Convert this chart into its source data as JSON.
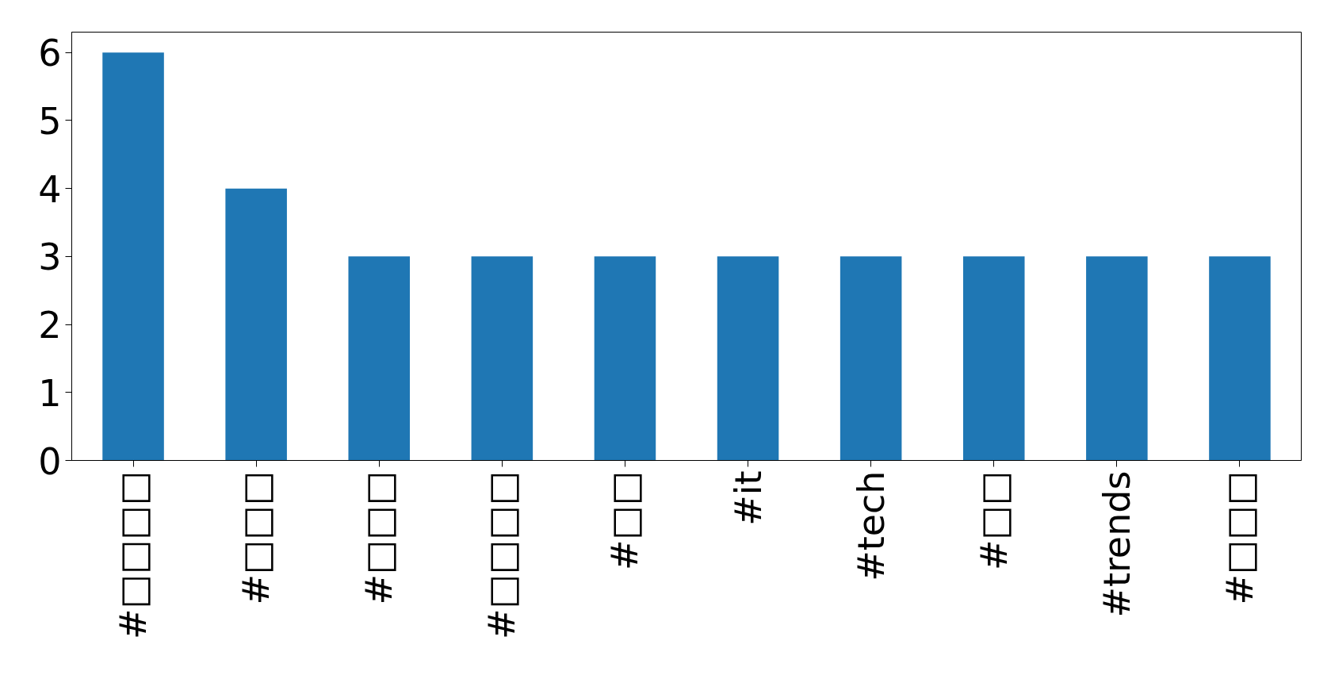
{
  "chart_data": {
    "type": "bar",
    "categories": [
      "#□□□□",
      "#□□□",
      "#□□□",
      "#□□□□",
      "#□□",
      "#it",
      "#tech",
      "#□□",
      "#trends",
      "#□□□"
    ],
    "values": [
      6,
      4,
      3,
      3,
      3,
      3,
      3,
      3,
      3,
      3
    ],
    "color": "#1f77b4",
    "ylim": [
      0,
      6.3
    ],
    "yticks": [
      0,
      1,
      2,
      3,
      4,
      5,
      6
    ],
    "grid": false
  }
}
